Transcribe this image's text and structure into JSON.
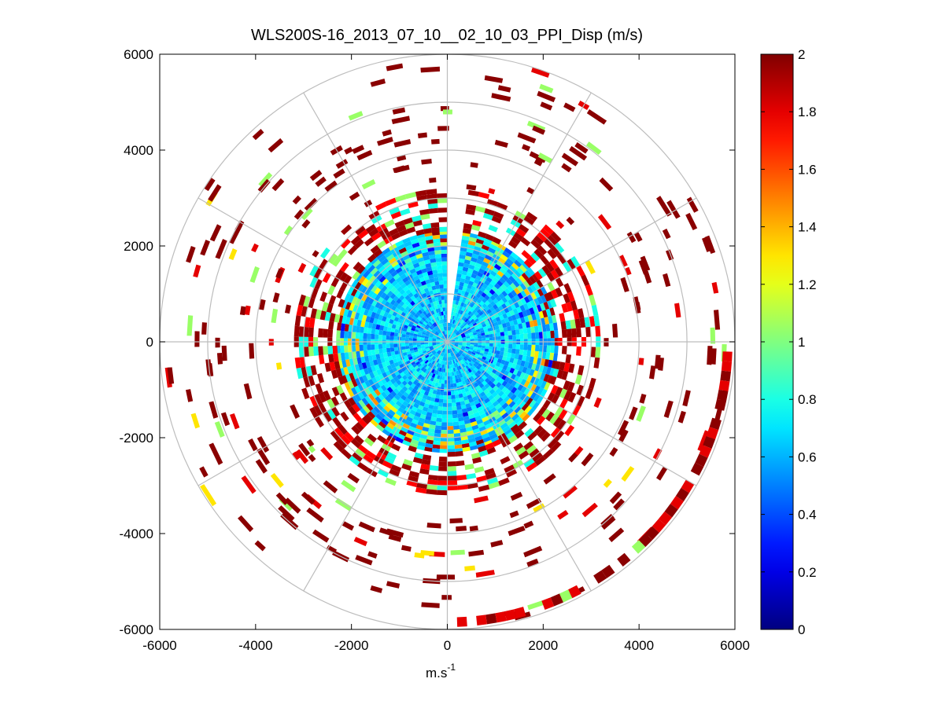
{
  "chart_data": {
    "type": "polar-ppi",
    "title": "WLS200S-16_2013_07_10__02_10_03_PPI_Disp (m/s)",
    "xlabel_base": "m.s",
    "xlabel_sup": "-1",
    "ylabel": "",
    "xlim": [
      -6000,
      6000
    ],
    "ylim": [
      -6000,
      6000
    ],
    "x_ticks": [
      -6000,
      -4000,
      -2000,
      0,
      2000,
      4000,
      6000
    ],
    "y_ticks": [
      6000,
      4000,
      2000,
      0,
      -2000,
      -4000,
      -6000
    ],
    "x_tick_labels": [
      "-6000",
      "-4000",
      "-2000",
      "0",
      "2000",
      "4000",
      "6000"
    ],
    "y_tick_labels": [
      "6000",
      "4000",
      "2000",
      "0",
      "-2000",
      "-4000",
      "-6000"
    ],
    "range_rings_m": [
      1000,
      2000,
      3000,
      4000,
      5000,
      6000
    ],
    "spoke_angles_deg": [
      0,
      30,
      60,
      90,
      120,
      150,
      180,
      210,
      240,
      270,
      300,
      330
    ],
    "colorbar": {
      "min": 0,
      "max": 2,
      "ticks": [
        0,
        0.2,
        0.4,
        0.6,
        0.8,
        1,
        1.2,
        1.4,
        1.6,
        1.8,
        2
      ],
      "tick_labels": [
        "0",
        "0.2",
        "0.4",
        "0.6",
        "0.8",
        "1",
        "1.2",
        "1.4",
        "1.6",
        "1.8",
        "2"
      ],
      "colormap": "jet"
    },
    "data_summary": {
      "inner_disk_radius_m": [
        0,
        2300
      ],
      "inner_disk_typical_value": 0.65,
      "mid_ring_radius_m": [
        2300,
        3200
      ],
      "mid_ring_typical_value": 2,
      "outer_sparse_radius_m": [
        3200,
        6000
      ],
      "outer_sparse_typical_value": 2,
      "sector_gap_azimuth_deg": [
        -1,
        7
      ]
    }
  }
}
